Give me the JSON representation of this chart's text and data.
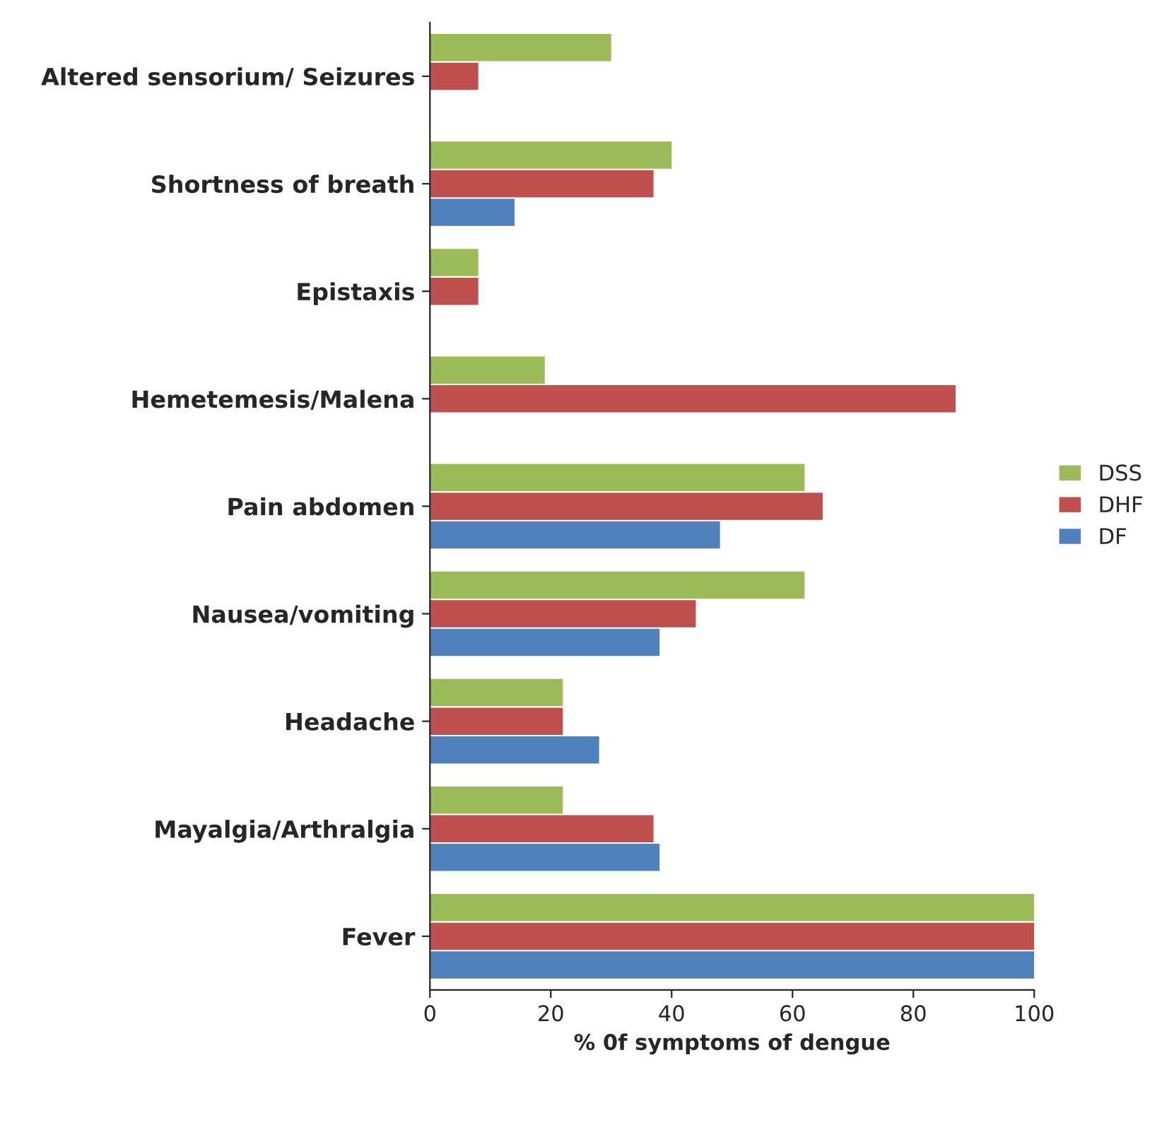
{
  "chart_data": {
    "type": "bar",
    "orientation": "horizontal",
    "xlabel": "% 0f symptoms of dengue",
    "categories": [
      "Altered sensorium/ Seizures",
      "Shortness of breath",
      "Epistaxis",
      "Hemetemesis/Malena",
      "Pain abdomen",
      "Nausea/vomiting",
      "Headache",
      "Mayalgia/Arthralgia",
      "Fever"
    ],
    "series": [
      {
        "name": "DSS",
        "color": "#9bbb59",
        "values": [
          30,
          40,
          8,
          19,
          62,
          62,
          22,
          22,
          100
        ]
      },
      {
        "name": "DHF",
        "color": "#c0504d",
        "values": [
          8,
          37,
          8,
          87,
          65,
          44,
          22,
          37,
          100
        ]
      },
      {
        "name": "DF",
        "color": "#4f81bd",
        "values": [
          0,
          14,
          0,
          0,
          48,
          38,
          28,
          38,
          100
        ]
      }
    ],
    "xlim": [
      0,
      100
    ],
    "xticks": [
      0,
      20,
      40,
      60,
      80,
      100
    ],
    "grid": false,
    "legend": "right"
  }
}
